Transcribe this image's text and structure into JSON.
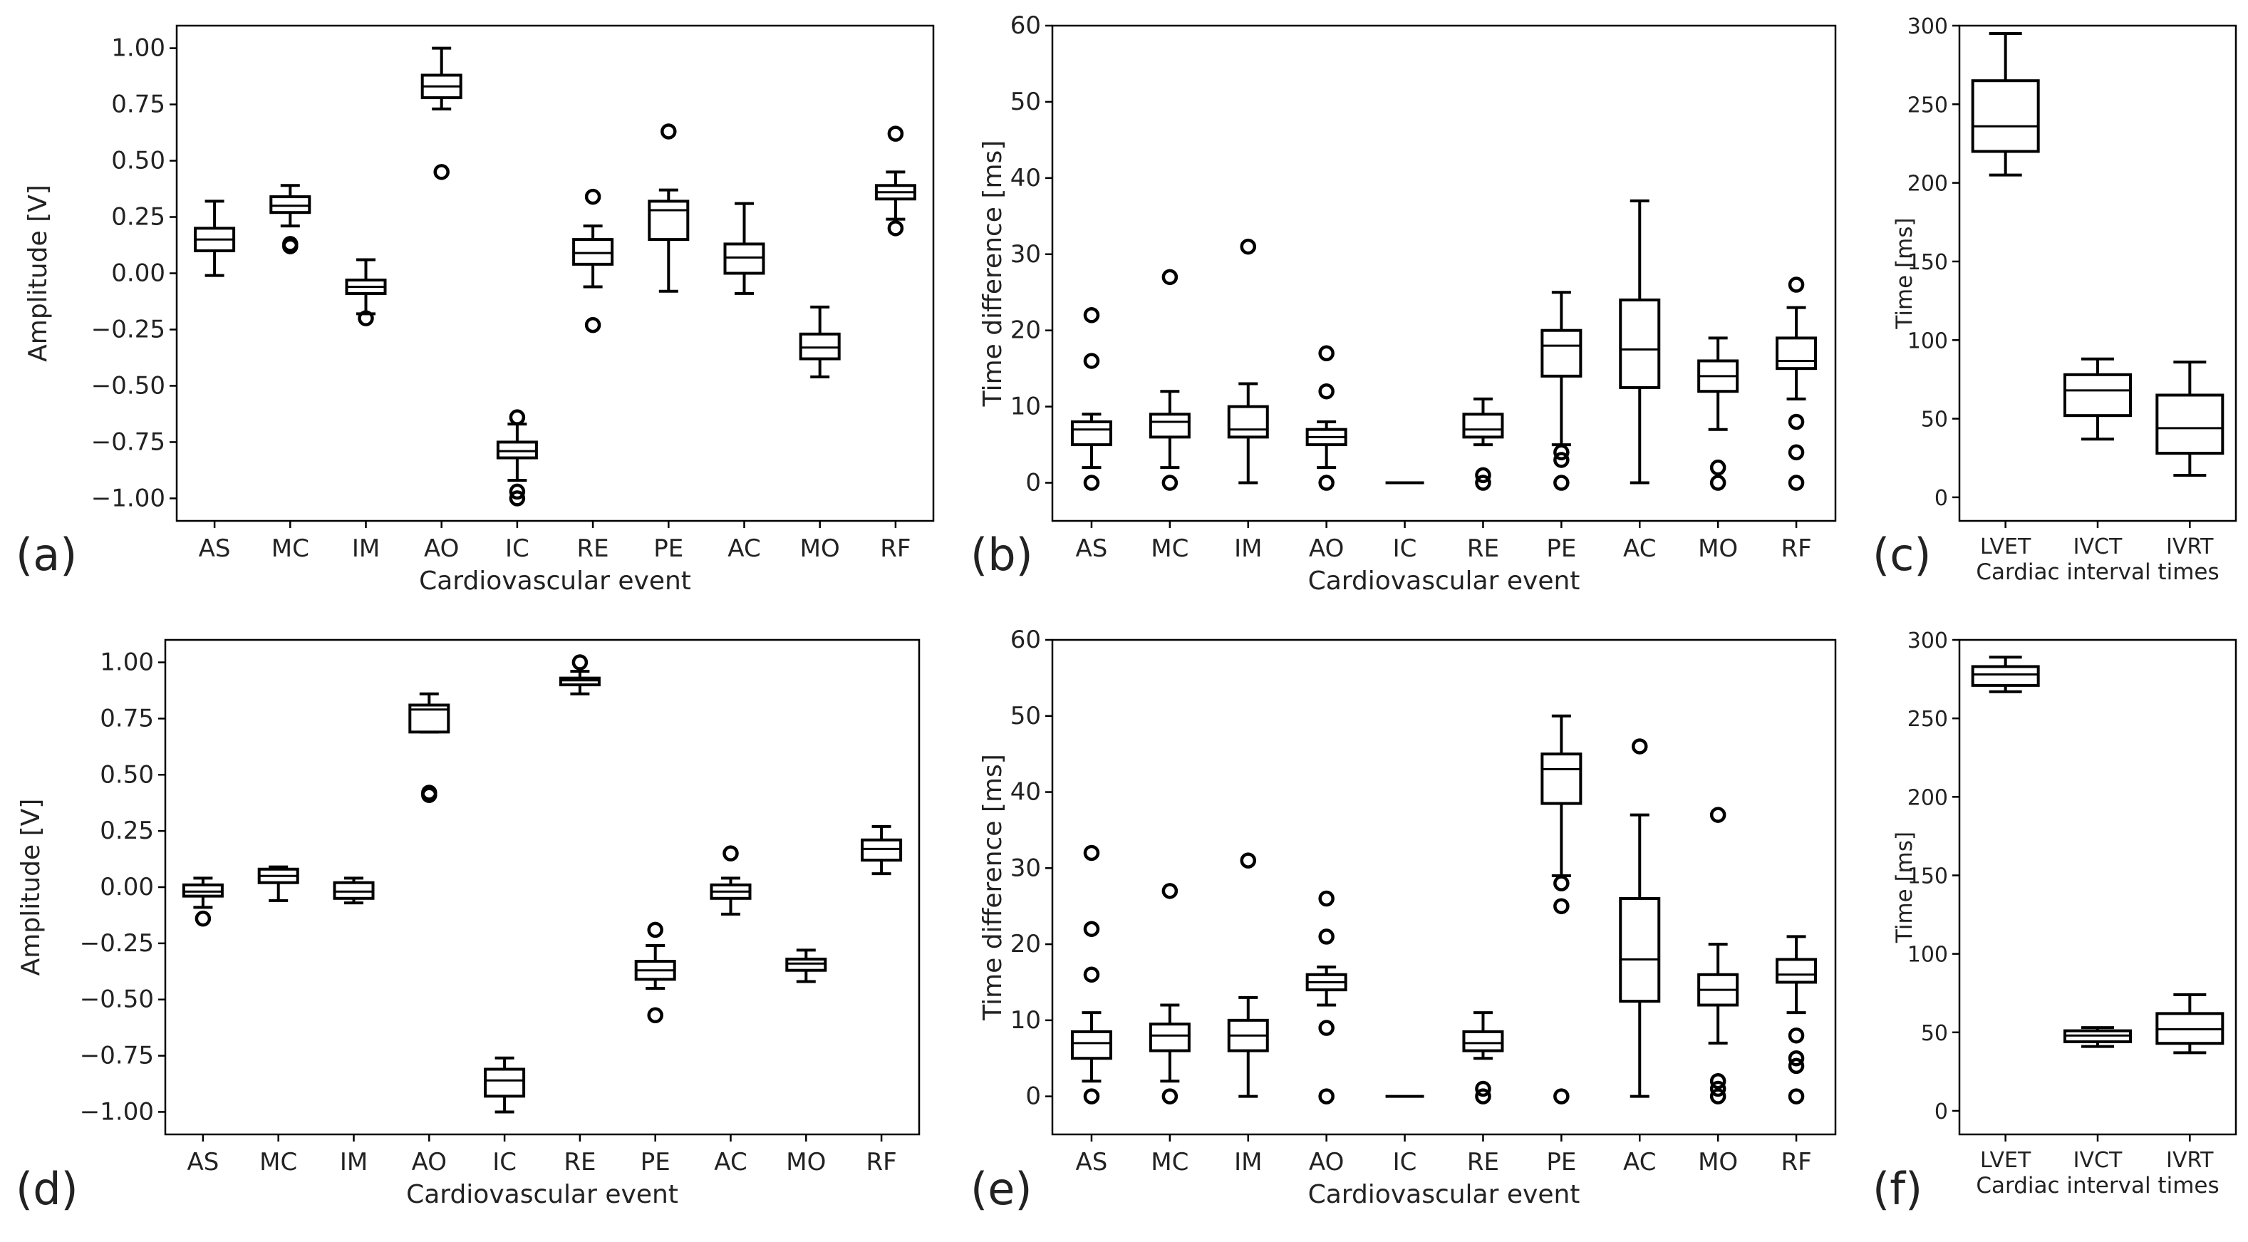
{
  "chart_data": [
    {
      "id": "a",
      "panel_label": "(a)",
      "type": "box",
      "title": "",
      "xlabel": "Cardiovascular event",
      "ylabel": "Amplitude [V]",
      "ylim": [
        -1.1,
        1.1
      ],
      "yticks": [
        1.0,
        0.75,
        0.5,
        0.25,
        0.0,
        -0.25,
        -0.5,
        -0.75,
        -1.0
      ],
      "ytick_labels": [
        "1.00",
        "0.75",
        "0.50",
        "0.25",
        "0.00",
        "−0.25",
        "−0.50",
        "−0.75",
        "−1.00"
      ],
      "categories": [
        "AS",
        "MC",
        "IM",
        "AO",
        "IC",
        "RE",
        "PE",
        "AC",
        "MO",
        "RF"
      ],
      "boxes": [
        {
          "whislo": -0.01,
          "q1": 0.1,
          "med": 0.15,
          "q3": 0.2,
          "whishi": 0.32,
          "fliers": []
        },
        {
          "whislo": 0.21,
          "q1": 0.27,
          "med": 0.3,
          "q3": 0.34,
          "whishi": 0.39,
          "fliers": [
            0.13,
            0.12
          ]
        },
        {
          "whislo": -0.18,
          "q1": -0.09,
          "med": -0.06,
          "q3": -0.03,
          "whishi": 0.06,
          "fliers": [
            -0.2
          ]
        },
        {
          "whislo": 0.73,
          "q1": 0.78,
          "med": 0.83,
          "q3": 0.88,
          "whishi": 1.0,
          "fliers": [
            0.45
          ]
        },
        {
          "whislo": -0.92,
          "q1": -0.82,
          "med": -0.79,
          "q3": -0.75,
          "whishi": -0.67,
          "fliers": [
            -0.64,
            -0.97,
            -1.0
          ]
        },
        {
          "whislo": -0.06,
          "q1": 0.04,
          "med": 0.09,
          "q3": 0.15,
          "whishi": 0.21,
          "fliers": [
            0.34,
            -0.23
          ]
        },
        {
          "whislo": -0.08,
          "q1": 0.15,
          "med": 0.28,
          "q3": 0.32,
          "whishi": 0.37,
          "fliers": [
            0.63
          ]
        },
        {
          "whislo": -0.09,
          "q1": 0.0,
          "med": 0.07,
          "q3": 0.13,
          "whishi": 0.31,
          "fliers": []
        },
        {
          "whislo": -0.46,
          "q1": -0.38,
          "med": -0.33,
          "q3": -0.27,
          "whishi": -0.15,
          "fliers": []
        },
        {
          "whislo": 0.24,
          "q1": 0.33,
          "med": 0.36,
          "q3": 0.39,
          "whishi": 0.45,
          "fliers": [
            0.62,
            0.2
          ]
        }
      ]
    },
    {
      "id": "b",
      "panel_label": "(b)",
      "type": "box",
      "title": "",
      "xlabel": "Cardiovascular event",
      "ylabel": "Time difference [ms]",
      "ylim": [
        -5,
        60
      ],
      "yticks": [
        0,
        10,
        20,
        30,
        40,
        50,
        60
      ],
      "ytick_labels": [
        "0",
        "10",
        "20",
        "30",
        "40",
        "50",
        "60"
      ],
      "categories": [
        "AS",
        "MC",
        "IM",
        "AO",
        "IC",
        "RE",
        "PE",
        "AC",
        "MO",
        "RF"
      ],
      "boxes": [
        {
          "whislo": 2,
          "q1": 5,
          "med": 7,
          "q3": 8,
          "whishi": 9,
          "fliers": [
            22,
            16,
            0
          ]
        },
        {
          "whislo": 2,
          "q1": 6,
          "med": 8,
          "q3": 9,
          "whishi": 12,
          "fliers": [
            27,
            0
          ]
        },
        {
          "whislo": 0,
          "q1": 6,
          "med": 7,
          "q3": 10,
          "whishi": 13,
          "fliers": [
            31
          ]
        },
        {
          "whislo": 2,
          "q1": 5,
          "med": 6,
          "q3": 7,
          "whishi": 8,
          "fliers": [
            17,
            12,
            0
          ]
        },
        {
          "whislo": 0,
          "q1": 0,
          "med": 0,
          "q3": 0,
          "whishi": 0,
          "fliers": []
        },
        {
          "whislo": 5,
          "q1": 6,
          "med": 7,
          "q3": 9,
          "whishi": 11,
          "fliers": [
            1,
            0
          ]
        },
        {
          "whislo": 5,
          "q1": 14,
          "med": 18,
          "q3": 20,
          "whishi": 25,
          "fliers": [
            4,
            3,
            0
          ]
        },
        {
          "whislo": 0,
          "q1": 12.5,
          "med": 17.5,
          "q3": 24,
          "whishi": 37,
          "fliers": []
        },
        {
          "whislo": 7,
          "q1": 12,
          "med": 14,
          "q3": 16,
          "whishi": 19,
          "fliers": [
            2,
            0
          ]
        },
        {
          "whislo": 11,
          "q1": 15,
          "med": 16,
          "q3": 19,
          "whishi": 23,
          "fliers": [
            26,
            8,
            4,
            0
          ]
        }
      ]
    },
    {
      "id": "c",
      "panel_label": "(c)",
      "type": "box",
      "title": "",
      "xlabel": "Cardiac interval times",
      "ylabel": "Time [ms]",
      "ylim": [
        -15,
        300
      ],
      "yticks": [
        0,
        50,
        100,
        150,
        200,
        250,
        300
      ],
      "ytick_labels": [
        "0",
        "50",
        "100",
        "150",
        "200",
        "250",
        "300"
      ],
      "categories": [
        "LVET",
        "IVCT",
        "IVRT"
      ],
      "boxes": [
        {
          "whislo": 205,
          "q1": 220,
          "med": 236,
          "q3": 265,
          "whishi": 295,
          "fliers": []
        },
        {
          "whislo": 37,
          "q1": 52,
          "med": 68,
          "q3": 78,
          "whishi": 88,
          "fliers": []
        },
        {
          "whislo": 14,
          "q1": 28,
          "med": 44,
          "q3": 65,
          "whishi": 86,
          "fliers": []
        }
      ]
    },
    {
      "id": "d",
      "panel_label": "(d)",
      "type": "box",
      "title": "",
      "xlabel": "Cardiovascular event",
      "ylabel": "Amplitude [V]",
      "ylim": [
        -1.1,
        1.1
      ],
      "yticks": [
        1.0,
        0.75,
        0.5,
        0.25,
        0.0,
        -0.25,
        -0.5,
        -0.75,
        -1.0
      ],
      "ytick_labels": [
        "1.00",
        "0.75",
        "0.50",
        "0.25",
        "0.00",
        "−0.25",
        "−0.50",
        "−0.75",
        "−1.00"
      ],
      "categories": [
        "AS",
        "MC",
        "IM",
        "AO",
        "IC",
        "RE",
        "PE",
        "AC",
        "MO",
        "RF"
      ],
      "boxes": [
        {
          "whislo": -0.09,
          "q1": -0.04,
          "med": -0.02,
          "q3": 0.01,
          "whishi": 0.04,
          "fliers": [
            -0.14
          ]
        },
        {
          "whislo": -0.06,
          "q1": 0.02,
          "med": 0.05,
          "q3": 0.08,
          "whishi": 0.09,
          "fliers": []
        },
        {
          "whislo": -0.07,
          "q1": -0.05,
          "med": -0.02,
          "q3": 0.02,
          "whishi": 0.04,
          "fliers": []
        },
        {
          "whislo": 0.69,
          "q1": 0.69,
          "med": 0.79,
          "q3": 0.81,
          "whishi": 0.86,
          "fliers": [
            0.42,
            0.41
          ]
        },
        {
          "whislo": -1.0,
          "q1": -0.93,
          "med": -0.86,
          "q3": -0.81,
          "whishi": -0.76,
          "fliers": []
        },
        {
          "whislo": 0.86,
          "q1": 0.9,
          "med": 0.92,
          "q3": 0.93,
          "whishi": 0.96,
          "fliers": [
            1.0
          ]
        },
        {
          "whislo": -0.45,
          "q1": -0.41,
          "med": -0.37,
          "q3": -0.33,
          "whishi": -0.26,
          "fliers": [
            -0.19,
            -0.57
          ]
        },
        {
          "whislo": -0.12,
          "q1": -0.05,
          "med": -0.02,
          "q3": 0.01,
          "whishi": 0.04,
          "fliers": [
            0.15
          ]
        },
        {
          "whislo": -0.42,
          "q1": -0.37,
          "med": -0.34,
          "q3": -0.32,
          "whishi": -0.28,
          "fliers": []
        },
        {
          "whislo": 0.06,
          "q1": 0.12,
          "med": 0.17,
          "q3": 0.21,
          "whishi": 0.27,
          "fliers": []
        }
      ]
    },
    {
      "id": "e",
      "panel_label": "(e)",
      "type": "box",
      "title": "",
      "xlabel": "Cardiovascular event",
      "ylabel": "Time difference [ms]",
      "ylim": [
        -5,
        60
      ],
      "yticks": [
        0,
        10,
        20,
        30,
        40,
        50,
        60
      ],
      "ytick_labels": [
        "0",
        "10",
        "20",
        "30",
        "40",
        "50",
        "60"
      ],
      "categories": [
        "AS",
        "MC",
        "IM",
        "AO",
        "IC",
        "RE",
        "PE",
        "AC",
        "MO",
        "RF"
      ],
      "boxes": [
        {
          "whislo": 2,
          "q1": 5,
          "med": 7,
          "q3": 8.5,
          "whishi": 11,
          "fliers": [
            32,
            22,
            16,
            0
          ]
        },
        {
          "whislo": 2,
          "q1": 6,
          "med": 8,
          "q3": 9.5,
          "whishi": 12,
          "fliers": [
            27,
            0
          ]
        },
        {
          "whislo": 0,
          "q1": 6,
          "med": 8,
          "q3": 10,
          "whishi": 13,
          "fliers": [
            31
          ]
        },
        {
          "whislo": 12,
          "q1": 14,
          "med": 15,
          "q3": 16,
          "whishi": 17,
          "fliers": [
            26,
            21,
            9,
            0
          ]
        },
        {
          "whislo": 0,
          "q1": 0,
          "med": 0,
          "q3": 0,
          "whishi": 0,
          "fliers": []
        },
        {
          "whislo": 5,
          "q1": 6,
          "med": 7,
          "q3": 8.5,
          "whishi": 11,
          "fliers": [
            1,
            0
          ]
        },
        {
          "whislo": 29,
          "q1": 38.5,
          "med": 43,
          "q3": 45,
          "whishi": 50,
          "fliers": [
            28,
            25,
            0
          ]
        },
        {
          "whislo": 0,
          "q1": 12.5,
          "med": 18,
          "q3": 26,
          "whishi": 37,
          "fliers": [
            46
          ]
        },
        {
          "whislo": 7,
          "q1": 12,
          "med": 14,
          "q3": 16,
          "whishi": 20,
          "fliers": [
            37,
            2,
            1,
            0
          ]
        },
        {
          "whislo": 11,
          "q1": 15,
          "med": 16,
          "q3": 18,
          "whishi": 21,
          "fliers": [
            8,
            5,
            4,
            0
          ]
        }
      ]
    },
    {
      "id": "f",
      "panel_label": "(f)",
      "type": "box",
      "title": "",
      "xlabel": "Cardiac interval times",
      "ylabel": "Time [ms]",
      "ylim": [
        -15,
        300
      ],
      "yticks": [
        0,
        50,
        100,
        150,
        200,
        250,
        300
      ],
      "ytick_labels": [
        "0",
        "50",
        "100",
        "150",
        "200",
        "250",
        "300"
      ],
      "categories": [
        "LVET",
        "IVCT",
        "IVRT"
      ],
      "boxes": [
        {
          "whislo": 267,
          "q1": 271,
          "med": 278,
          "q3": 283,
          "whishi": 289,
          "fliers": []
        },
        {
          "whislo": 41,
          "q1": 44,
          "med": 48,
          "q3": 51,
          "whishi": 53,
          "fliers": []
        },
        {
          "whislo": 37,
          "q1": 43,
          "med": 52,
          "q3": 62,
          "whishi": 74,
          "fliers": []
        }
      ]
    }
  ]
}
